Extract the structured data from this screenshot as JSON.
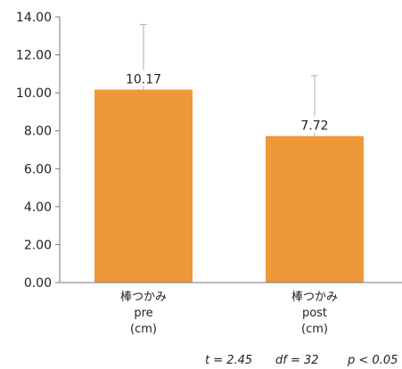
{
  "chart_data": {
    "type": "bar",
    "categories": [
      [
        "棒つかみ",
        "pre",
        "(cm)"
      ],
      [
        "棒つかみ",
        "post",
        "(cm)"
      ]
    ],
    "values": [
      10.17,
      7.72
    ],
    "value_labels": [
      "10.17",
      "7.72"
    ],
    "error_plus": [
      3.43,
      3.19
    ],
    "ylim": [
      0,
      14
    ],
    "yticks": [
      "0.00",
      "2.00",
      "4.00",
      "6.00",
      "8.00",
      "10.00",
      "12.00",
      "14.00"
    ],
    "grid": false,
    "colors": {
      "bar": "#EE983A",
      "error_bar": "#BBBBBB",
      "axis": "#777777"
    },
    "annotations": [
      "t = 2.45",
      "df = 32",
      "p < 0.05"
    ]
  }
}
